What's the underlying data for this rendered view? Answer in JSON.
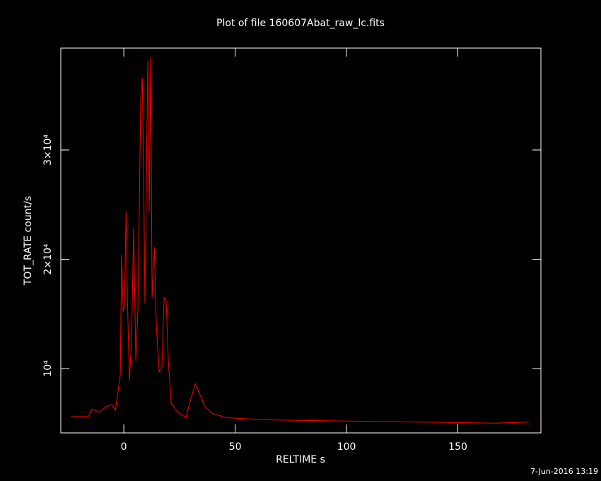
{
  "chart_data": {
    "type": "line",
    "title": "Plot of file 160607Abat_raw_lc.fits",
    "x_label": "RELTIME  s",
    "y_label": "TOT_RATE  count/s",
    "footer": "7-Jun-2016 13:19",
    "xlim": [
      -28.3,
      187.3
    ],
    "ylim": [
      4110,
      39320
    ],
    "xticks": [
      0,
      50,
      100,
      150
    ],
    "yticks": [
      {
        "value": 10000,
        "label": "10⁴"
      },
      {
        "value": 20000,
        "label": "2×10⁴"
      },
      {
        "value": 30000,
        "label": "3×10⁴"
      }
    ],
    "x": [
      -23.8,
      -15.9,
      -14.3,
      -11.1,
      -7.9,
      -5.4,
      -3.8,
      -2.5,
      -1.6,
      -1.0,
      -0.3,
      0.3,
      1.0,
      1.6,
      2.5,
      3.5,
      4.4,
      5.4,
      6.3,
      7.6,
      8.3,
      8.9,
      9.5,
      10.2,
      10.8,
      11.4,
      12.1,
      12.7,
      13.7,
      14.6,
      15.9,
      17.1,
      18.1,
      19.0,
      20.0,
      21.3,
      23.8,
      27.9,
      29.5,
      32.1,
      34.0,
      36.5,
      39.7,
      46.0,
      65.1,
      100,
      134.9,
      166.7,
      181.9
    ],
    "series": [
      {
        "color": "#ff0000",
        "values": [
          5600,
          5600,
          6300,
          6000,
          6500,
          6700,
          6200,
          8100,
          9400,
          20400,
          15200,
          15900,
          24400,
          16500,
          8800,
          12700,
          22900,
          10700,
          15200,
          34700,
          36600,
          27500,
          15900,
          28800,
          38200,
          24300,
          38500,
          16500,
          21100,
          13900,
          9700,
          10100,
          16500,
          16200,
          10700,
          6800,
          6100,
          5500,
          6800,
          8600,
          7700,
          6500,
          5900,
          5500,
          5300,
          5200,
          5100,
          5000,
          5100
        ]
      }
    ]
  }
}
